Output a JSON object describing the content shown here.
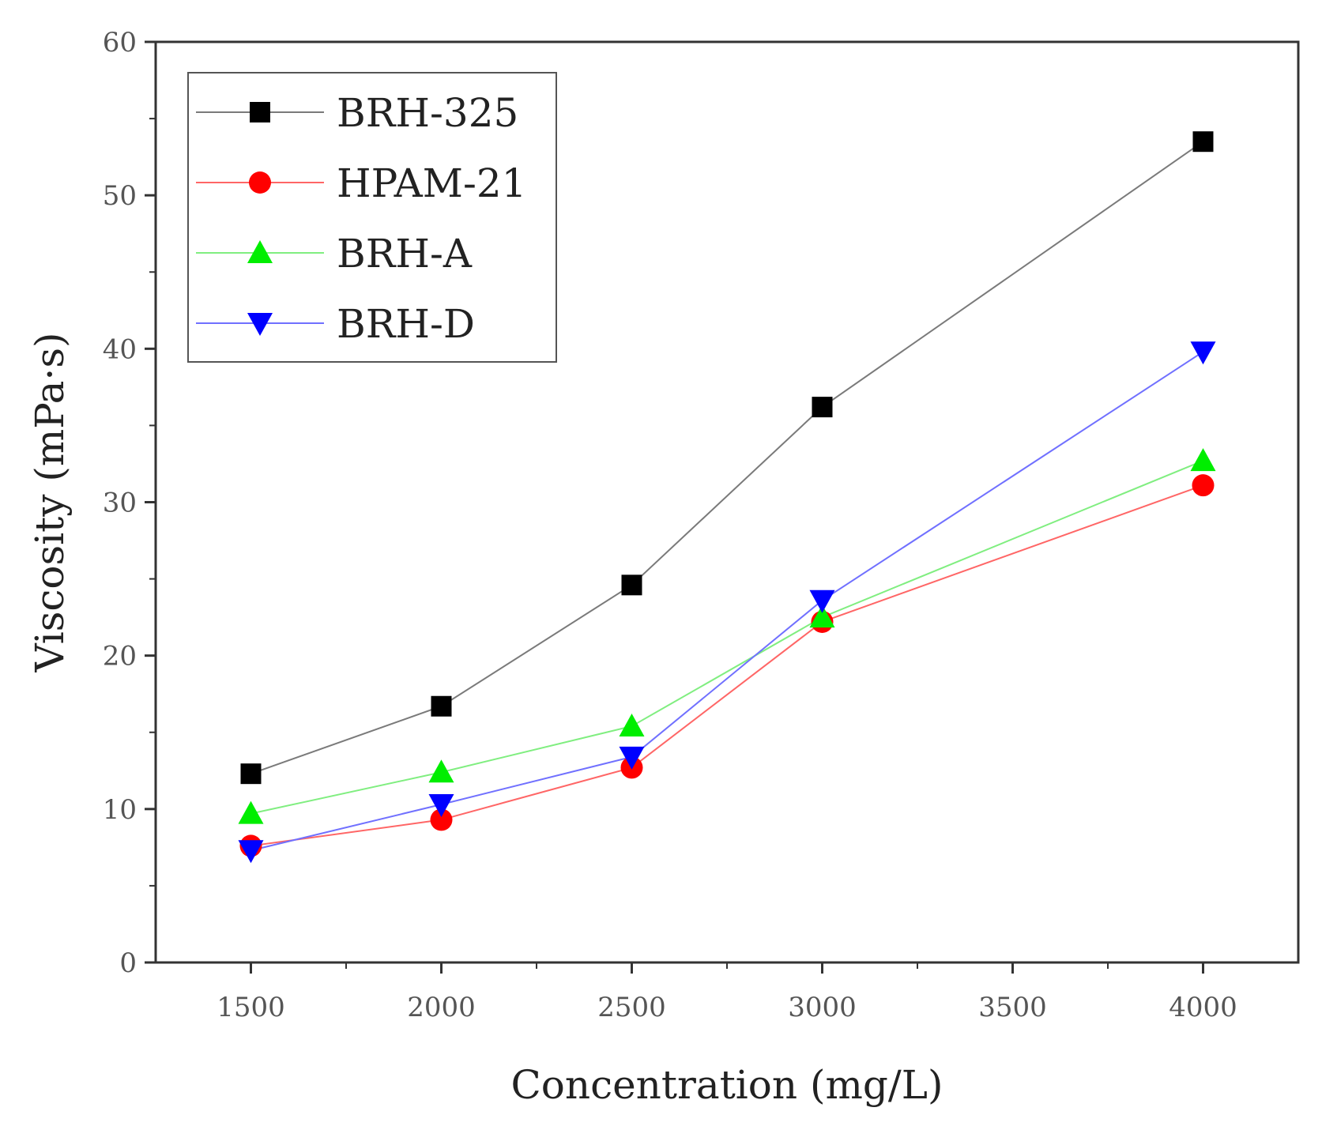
{
  "chart_data": {
    "type": "line",
    "title": "",
    "xlabel": "Concentration (mg/L)",
    "ylabel": "Viscosity (mPa·s)",
    "xlim": [
      1250,
      4250
    ],
    "ylim": [
      0,
      60
    ],
    "xticks": [
      1500,
      2000,
      2500,
      3000,
      3500,
      4000
    ],
    "yticks": [
      0,
      10,
      20,
      30,
      40,
      50,
      60
    ],
    "x": [
      1500,
      2000,
      2500,
      3000,
      4000
    ],
    "grid": false,
    "legend_position": "top-left",
    "series": [
      {
        "name": "BRH-325",
        "marker": "square",
        "color": "#000000",
        "line_color": "#7a7a7a",
        "values": [
          12.3,
          16.7,
          24.6,
          36.2,
          53.5
        ]
      },
      {
        "name": "HPAM-21",
        "marker": "circle",
        "color": "#ff0000",
        "line_color": "#ff6666",
        "values": [
          7.6,
          9.3,
          12.7,
          22.2,
          31.1
        ]
      },
      {
        "name": "BRH-A",
        "marker": "triangle-up",
        "color": "#00ee00",
        "line_color": "#80ee80",
        "values": [
          9.7,
          12.4,
          15.4,
          22.5,
          32.7
        ]
      },
      {
        "name": "BRH-D",
        "marker": "triangle-down",
        "color": "#0000ff",
        "line_color": "#7070ff",
        "values": [
          7.3,
          10.3,
          13.4,
          23.6,
          39.8
        ]
      }
    ]
  }
}
